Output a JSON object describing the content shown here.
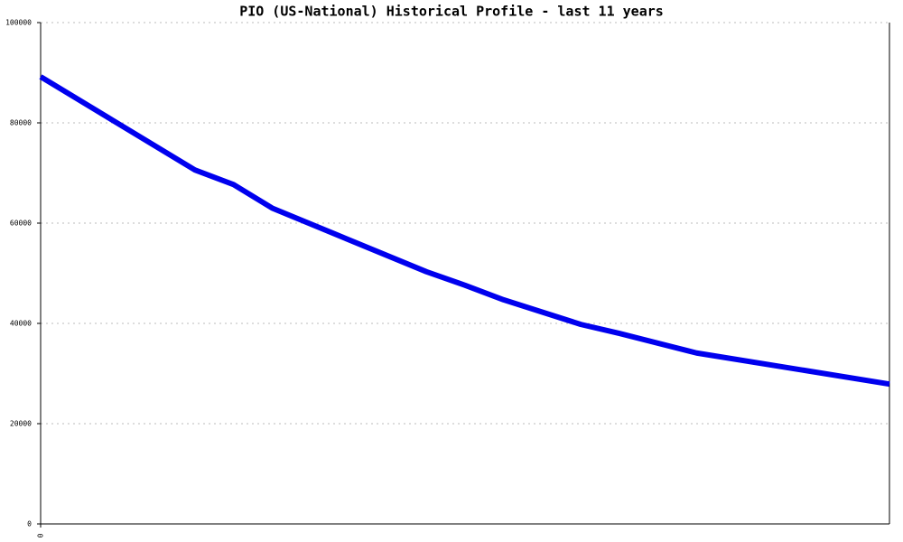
{
  "chart_data": {
    "type": "line",
    "title": "PIO (US-National) Historical Profile - last 11 years",
    "x": [
      0,
      2,
      2.5,
      3,
      5,
      5.5,
      6,
      7,
      7.5,
      8.5,
      11
    ],
    "series": [
      {
        "color": "#0000ee",
        "values": [
          89200,
          70600,
          67700,
          63000,
          50300,
          47600,
          44700,
          39800,
          38000,
          34100,
          27900
        ]
      }
    ],
    "xlim": [
      0,
      11
    ],
    "xticks": [
      0
    ],
    "ylim": [
      0,
      100000
    ],
    "yticks": [
      0,
      20000,
      40000,
      60000,
      80000,
      100000
    ],
    "grid": true
  }
}
